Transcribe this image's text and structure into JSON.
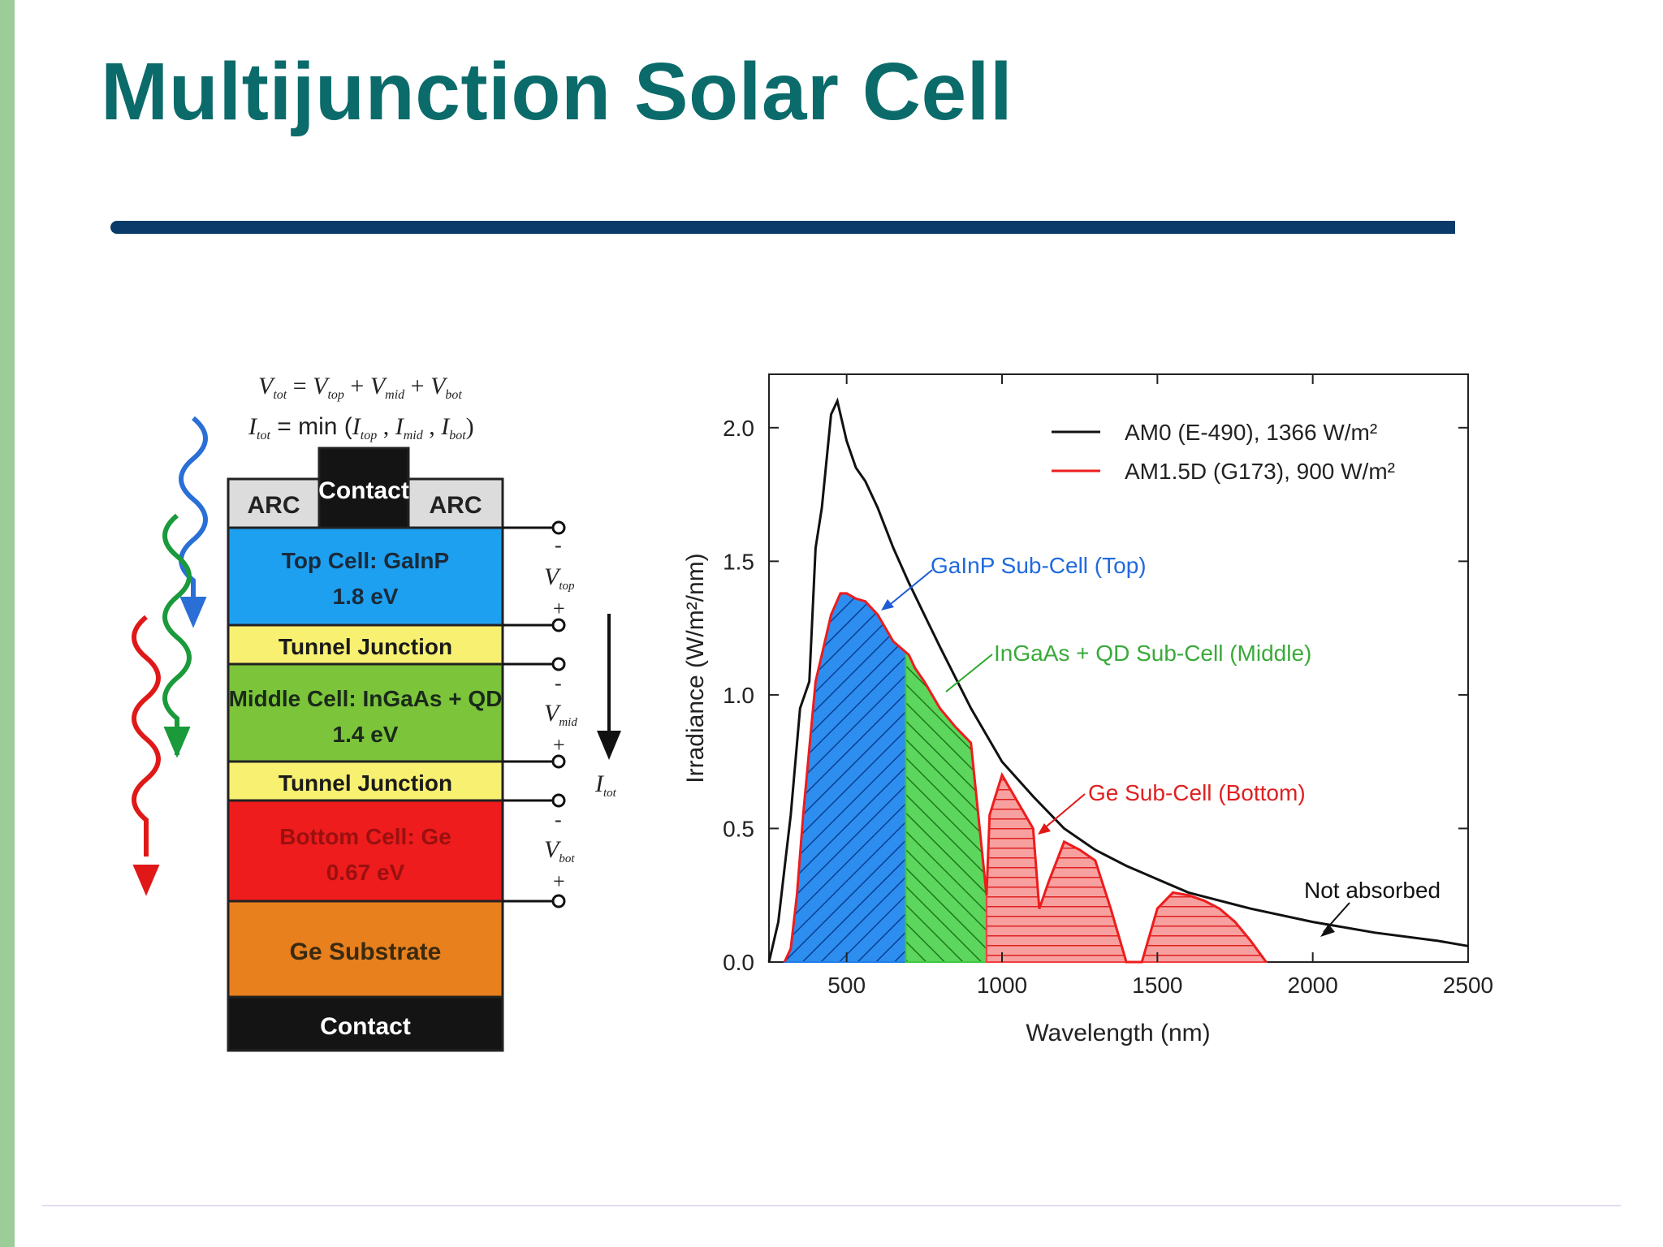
{
  "slide": {
    "title": "Multijunction Solar Cell"
  },
  "cell_diagram": {
    "eq_vtot": "V",
    "eq_vtot_sub": "tot",
    "eq_equals": " = ",
    "eq_vtop": "V",
    "eq_vtop_sub": "top",
    "eq_plus1": " + ",
    "eq_vmid": "V",
    "eq_vmid_sub": "mid",
    "eq_plus2": " + ",
    "eq_vbot": "V",
    "eq_vbot_sub": "bot",
    "eq_itot": "I",
    "eq_itot_sub": "tot",
    "eq_min": " = min (",
    "eq_itop": "I",
    "eq_itop_sub": "top",
    "eq_comma1": " , ",
    "eq_imid": "I",
    "eq_imid_sub": "mid",
    "eq_comma2": " , ",
    "eq_ibot": "I",
    "eq_ibot_sub": "bot",
    "eq_close": ")",
    "top_contact": "Contact",
    "arc_left": "ARC",
    "arc_right": "ARC",
    "top_cell_line1": "Top Cell: GaInP",
    "top_cell_line2": "1.8 eV",
    "tunnel1": "Tunnel Junction",
    "middle_cell_line1": "Middle Cell: InGaAs + QD",
    "middle_cell_line2": "1.4 eV",
    "tunnel2": "Tunnel Junction",
    "bottom_cell_line1": "Bottom Cell: Ge",
    "bottom_cell_line2": "0.67 eV",
    "substrate": "Ge Substrate",
    "bottom_contact": "Contact",
    "v_top": "V",
    "v_top_sub": "top",
    "v_mid": "V",
    "v_mid_sub": "mid",
    "v_bot": "V",
    "v_bot_sub": "bot",
    "minus": "-",
    "plus": "+",
    "i_tot": "I",
    "i_tot_sub": "tot",
    "colors": {
      "top_cell": "#1ea0f0",
      "tunnel": "#f8f070",
      "middle_cell": "#7cc43a",
      "bottom_cell": "#ee1c1c",
      "substrate": "#e8801e",
      "contact": "#141414",
      "arc": "#dcdcdc"
    }
  },
  "chart_data": {
    "type": "area",
    "xlabel": "Wavelength (nm)",
    "ylabel": "Irradiance (W/m²/nm)",
    "xlim": [
      250,
      2500
    ],
    "ylim": [
      0,
      2.2
    ],
    "x_ticks": [
      500,
      1000,
      1500,
      2000,
      2500
    ],
    "y_ticks": [
      0.0,
      0.5,
      1.0,
      1.5,
      2.0
    ],
    "x_tick_labels": [
      "500",
      "1000",
      "1500",
      "2000",
      "2500"
    ],
    "y_tick_labels": [
      "0.0",
      "0.5",
      "1.0",
      "1.5",
      "2.0"
    ],
    "legend": {
      "placement": "top-right",
      "entry1": "AM0 (E-490), 1366 W/m²",
      "entry2": "AM1.5D (G173), 900 W/m²"
    },
    "annotations": {
      "top": "GaInP Sub-Cell (Top)",
      "middle": "InGaAs + QD Sub-Cell (Middle)",
      "bottom": "Ge Sub-Cell (Bottom)",
      "not_absorbed": "Not absorbed"
    },
    "series": [
      {
        "name": "AM0 (E-490), 1366 W/m²",
        "color": "#111111",
        "x": [
          250,
          280,
          300,
          320,
          350,
          380,
          400,
          420,
          450,
          470,
          500,
          530,
          560,
          600,
          650,
          700,
          750,
          800,
          900,
          1000,
          1100,
          1200,
          1300,
          1400,
          1500,
          1600,
          1800,
          2000,
          2200,
          2400,
          2500
        ],
        "y": [
          0.0,
          0.15,
          0.35,
          0.55,
          0.95,
          1.05,
          1.55,
          1.7,
          2.05,
          2.1,
          1.95,
          1.85,
          1.8,
          1.7,
          1.55,
          1.42,
          1.3,
          1.18,
          0.95,
          0.75,
          0.62,
          0.5,
          0.42,
          0.36,
          0.31,
          0.26,
          0.2,
          0.15,
          0.11,
          0.08,
          0.06
        ]
      },
      {
        "name": "AM1.5D (G173), 900 W/m²",
        "color": "#ee1c1c",
        "x": [
          300,
          320,
          340,
          360,
          380,
          400,
          420,
          450,
          480,
          500,
          530,
          560,
          600,
          650,
          700,
          720,
          750,
          800,
          850,
          900,
          950,
          960,
          1000,
          1050,
          1100,
          1120,
          1150,
          1200,
          1250,
          1300,
          1350,
          1400,
          1450,
          1500,
          1550,
          1600,
          1650,
          1700,
          1750,
          1800,
          1850
        ],
        "y": [
          0.0,
          0.05,
          0.25,
          0.55,
          0.8,
          1.05,
          1.15,
          1.3,
          1.38,
          1.38,
          1.36,
          1.35,
          1.3,
          1.2,
          1.15,
          1.1,
          1.05,
          0.95,
          0.88,
          0.82,
          0.25,
          0.55,
          0.7,
          0.6,
          0.5,
          0.2,
          0.3,
          0.45,
          0.42,
          0.38,
          0.2,
          0.0,
          0.0,
          0.2,
          0.26,
          0.25,
          0.23,
          0.2,
          0.15,
          0.08,
          0.0
        ]
      }
    ],
    "bands": [
      {
        "name": "GaInP Sub-Cell (Top)",
        "from": 300,
        "to": 690,
        "color": "#1e7ee8"
      },
      {
        "name": "InGaAs + QD Sub-Cell (Middle)",
        "from": 690,
        "to": 950,
        "color": "#3cc83c"
      },
      {
        "name": "Ge Sub-Cell (Bottom)",
        "from": 950,
        "to": 1850,
        "color": "#f04040"
      }
    ]
  }
}
